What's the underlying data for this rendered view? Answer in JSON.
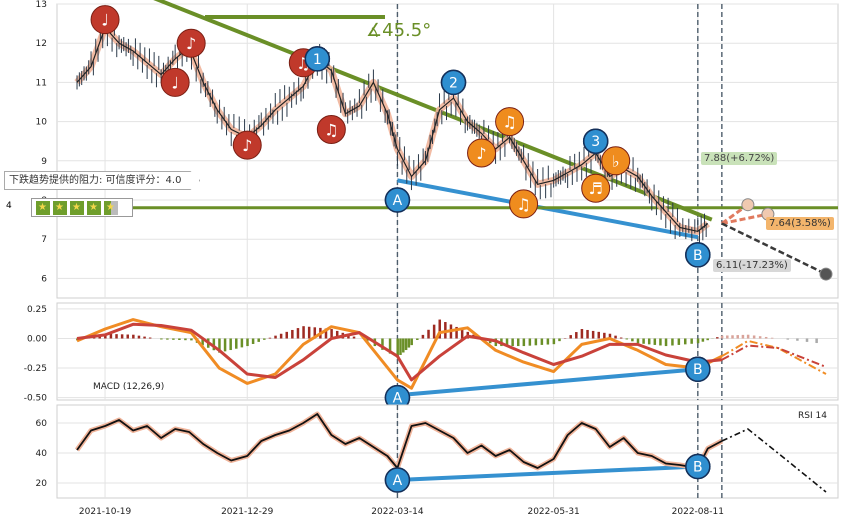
{
  "chart_data": [
    {
      "type": "line",
      "panel": "price",
      "ylim": [
        5.5,
        13
      ],
      "y_ticks": [
        6,
        7,
        8,
        9,
        10,
        11,
        12,
        13
      ],
      "x_ticks": [
        "2021-10-19",
        "2021-12-29",
        "2022-03-14",
        "2022-05-31",
        "2022-08-11"
      ],
      "x_range": [
        "2021-09-25",
        "2022-10-20"
      ],
      "series": [
        {
          "color": "#222222",
          "points": [
            [
              "2021-10-05",
              11.0
            ],
            [
              "2021-10-12",
              11.4
            ],
            [
              "2021-10-19",
              12.4
            ],
            [
              "2021-10-26",
              12.0
            ],
            [
              "2021-11-02",
              11.8
            ],
            [
              "2021-11-09",
              11.5
            ],
            [
              "2021-11-16",
              11.2
            ],
            [
              "2021-11-23",
              11.6
            ],
            [
              "2021-11-30",
              11.9
            ],
            [
              "2021-12-07",
              11.0
            ],
            [
              "2021-12-14",
              10.3
            ],
            [
              "2021-12-21",
              9.8
            ],
            [
              "2021-12-29",
              9.6
            ],
            [
              "2022-01-05",
              9.9
            ],
            [
              "2022-01-12",
              10.3
            ],
            [
              "2022-01-19",
              10.6
            ],
            [
              "2022-01-26",
              10.9
            ],
            [
              "2022-02-02",
              11.6
            ],
            [
              "2022-02-09",
              11.3
            ],
            [
              "2022-02-16",
              10.2
            ],
            [
              "2022-02-23",
              10.4
            ],
            [
              "2022-03-02",
              11.0
            ],
            [
              "2022-03-09",
              10.2
            ],
            [
              "2022-03-14",
              9.3
            ],
            [
              "2022-03-21",
              8.6
            ],
            [
              "2022-03-28",
              9.0
            ],
            [
              "2022-04-04",
              10.3
            ],
            [
              "2022-04-11",
              10.6
            ],
            [
              "2022-04-18",
              10.0
            ],
            [
              "2022-04-25",
              9.7
            ],
            [
              "2022-05-02",
              9.3
            ],
            [
              "2022-05-09",
              9.6
            ],
            [
              "2022-05-16",
              9.0
            ],
            [
              "2022-05-23",
              8.4
            ],
            [
              "2022-05-31",
              8.5
            ],
            [
              "2022-06-07",
              8.7
            ],
            [
              "2022-06-14",
              8.9
            ],
            [
              "2022-06-21",
              9.2
            ],
            [
              "2022-06-28",
              8.6
            ],
            [
              "2022-07-05",
              8.8
            ],
            [
              "2022-07-12",
              8.6
            ],
            [
              "2022-07-19",
              8.1
            ],
            [
              "2022-07-26",
              7.7
            ],
            [
              "2022-08-02",
              7.3
            ],
            [
              "2022-08-11",
              7.2
            ],
            [
              "2022-08-16",
              7.4
            ]
          ]
        },
        {
          "color": "#e07a5f",
          "points": [
            [
              "2022-08-23",
              7.4
            ],
            [
              "2022-09-15",
              7.64
            ]
          ]
        },
        {
          "color": "#e07a5f",
          "points": [
            [
              "2022-08-23",
              7.4
            ],
            [
              "2022-09-05",
              7.88
            ]
          ]
        },
        {
          "color": "#3a3a3a",
          "points": [
            [
              "2022-08-23",
              7.4
            ],
            [
              "2022-10-14",
              6.11
            ]
          ]
        }
      ],
      "trendlines": [
        {
          "name": "resistance",
          "color": "#6a8f27",
          "points": [
            [
              "2021-11-10",
              13.2
            ],
            [
              "2022-08-18",
              7.5
            ]
          ]
        },
        {
          "name": "support",
          "color": "#3591d0",
          "points": [
            [
              "2022-03-14",
              8.5
            ],
            [
              "2022-08-11",
              7.05
            ]
          ]
        },
        {
          "name": "horizontal",
          "color": "#6a8f27",
          "points": [
            [
              "2021-09-25",
              7.8
            ],
            [
              "2022-10-20",
              7.8
            ]
          ]
        }
      ],
      "vlines": [
        "2022-03-14",
        "2022-08-11",
        "2022-08-23"
      ],
      "annotations": [
        {
          "text": "45.5°",
          "color": "#6a8f27"
        },
        {
          "text": "7.88(+6.72%)"
        },
        {
          "text": "7.64(3.58%)"
        },
        {
          "text": "6.11(-17.23%)"
        },
        {
          "text": "下跌趋势提供的阻力: 可信度评分：4.0"
        },
        {
          "text": "4"
        }
      ],
      "markers": [
        {
          "label": "1",
          "x": "2022-02-02",
          "y": 11.6
        },
        {
          "label": "2",
          "x": "2022-04-11",
          "y": 11.0
        },
        {
          "label": "3",
          "x": "2022-06-21",
          "y": 9.5
        },
        {
          "label": "A",
          "x": "2022-03-14",
          "y": 8.0
        },
        {
          "label": "B",
          "x": "2022-08-11",
          "y": 6.6
        }
      ]
    },
    {
      "type": "line",
      "panel": "macd",
      "label": "MACD (12,26,9)",
      "ylim": [
        -0.52,
        0.3
      ],
      "y_ticks": [
        0.25,
        0.0,
        -0.25,
        -0.5
      ],
      "y_tick_labels": [
        "0.25",
        "0.00",
        "-0.25",
        "-0.50"
      ],
      "series": [
        {
          "color": "#f08c24",
          "points": [
            [
              "2021-10-05",
              -0.02
            ],
            [
              "2021-10-19",
              0.08
            ],
            [
              "2021-11-02",
              0.16
            ],
            [
              "2021-11-16",
              0.1
            ],
            [
              "2021-12-01",
              0.05
            ],
            [
              "2021-12-15",
              -0.25
            ],
            [
              "2021-12-29",
              -0.38
            ],
            [
              "2022-01-12",
              -0.3
            ],
            [
              "2022-01-26",
              -0.05
            ],
            [
              "2022-02-09",
              0.1
            ],
            [
              "2022-02-23",
              0.05
            ],
            [
              "2022-03-14",
              -0.35
            ],
            [
              "2022-03-21",
              -0.42
            ],
            [
              "2022-04-04",
              0.05
            ],
            [
              "2022-04-18",
              0.09
            ],
            [
              "2022-05-02",
              -0.1
            ],
            [
              "2022-05-16",
              -0.2
            ],
            [
              "2022-05-31",
              -0.28
            ],
            [
              "2022-06-14",
              -0.05
            ],
            [
              "2022-06-28",
              0.0
            ],
            [
              "2022-07-12",
              -0.1
            ],
            [
              "2022-07-26",
              -0.22
            ],
            [
              "2022-08-11",
              -0.25
            ],
            [
              "2022-08-23",
              -0.15
            ],
            [
              "2022-09-05",
              -0.02
            ],
            [
              "2022-09-20",
              -0.08
            ],
            [
              "2022-10-14",
              -0.3
            ]
          ]
        },
        {
          "color": "#c9423a",
          "points": [
            [
              "2021-10-05",
              0.0
            ],
            [
              "2021-10-19",
              0.03
            ],
            [
              "2021-11-02",
              0.12
            ],
            [
              "2021-11-16",
              0.11
            ],
            [
              "2021-12-01",
              0.07
            ],
            [
              "2021-12-15",
              -0.1
            ],
            [
              "2021-12-29",
              -0.3
            ],
            [
              "2022-01-12",
              -0.33
            ],
            [
              "2022-01-26",
              -0.18
            ],
            [
              "2022-02-09",
              0.0
            ],
            [
              "2022-02-23",
              0.05
            ],
            [
              "2022-03-14",
              -0.15
            ],
            [
              "2022-03-21",
              -0.35
            ],
            [
              "2022-04-04",
              -0.15
            ],
            [
              "2022-04-18",
              0.02
            ],
            [
              "2022-05-02",
              -0.02
            ],
            [
              "2022-05-16",
              -0.12
            ],
            [
              "2022-05-31",
              -0.22
            ],
            [
              "2022-06-14",
              -0.15
            ],
            [
              "2022-06-28",
              -0.05
            ],
            [
              "2022-07-12",
              -0.05
            ],
            [
              "2022-07-26",
              -0.14
            ],
            [
              "2022-08-11",
              -0.2
            ],
            [
              "2022-08-23",
              -0.18
            ],
            [
              "2022-09-05",
              -0.06
            ],
            [
              "2022-09-20",
              -0.08
            ],
            [
              "2022-10-14",
              -0.24
            ]
          ]
        }
      ],
      "trendlines": [
        {
          "color": "#3591d0",
          "points": [
            [
              "2022-03-14",
              -0.48
            ],
            [
              "2022-08-11",
              -0.26
            ]
          ]
        }
      ],
      "markers": [
        {
          "label": "A",
          "x": "2022-03-14",
          "y": -0.5
        },
        {
          "label": "B",
          "x": "2022-08-11",
          "y": -0.26
        }
      ]
    },
    {
      "type": "line",
      "panel": "rsi",
      "label": "RSI 14",
      "ylim": [
        10,
        72
      ],
      "y_ticks": [
        60,
        40,
        20
      ],
      "series": [
        {
          "color": "#111111",
          "points": [
            [
              "2021-10-05",
              42
            ],
            [
              "2021-10-12",
              55
            ],
            [
              "2021-10-19",
              58
            ],
            [
              "2021-10-26",
              62
            ],
            [
              "2021-11-02",
              55
            ],
            [
              "2021-11-09",
              58
            ],
            [
              "2021-11-16",
              50
            ],
            [
              "2021-11-23",
              56
            ],
            [
              "2021-11-30",
              54
            ],
            [
              "2021-12-07",
              46
            ],
            [
              "2021-12-14",
              40
            ],
            [
              "2021-12-21",
              35
            ],
            [
              "2021-12-29",
              38
            ],
            [
              "2022-01-05",
              48
            ],
            [
              "2022-01-12",
              52
            ],
            [
              "2022-01-19",
              55
            ],
            [
              "2022-01-26",
              60
            ],
            [
              "2022-02-02",
              66
            ],
            [
              "2022-02-09",
              52
            ],
            [
              "2022-02-16",
              46
            ],
            [
              "2022-02-23",
              50
            ],
            [
              "2022-03-02",
              44
            ],
            [
              "2022-03-09",
              38
            ],
            [
              "2022-03-14",
              30
            ],
            [
              "2022-03-21",
              58
            ],
            [
              "2022-03-28",
              60
            ],
            [
              "2022-04-04",
              55
            ],
            [
              "2022-04-11",
              50
            ],
            [
              "2022-04-18",
              40
            ],
            [
              "2022-04-25",
              45
            ],
            [
              "2022-05-02",
              38
            ],
            [
              "2022-05-09",
              42
            ],
            [
              "2022-05-16",
              34
            ],
            [
              "2022-05-23",
              30
            ],
            [
              "2022-05-31",
              36
            ],
            [
              "2022-06-07",
              52
            ],
            [
              "2022-06-14",
              60
            ],
            [
              "2022-06-21",
              56
            ],
            [
              "2022-06-28",
              44
            ],
            [
              "2022-07-05",
              50
            ],
            [
              "2022-07-12",
              40
            ],
            [
              "2022-07-19",
              38
            ],
            [
              "2022-07-26",
              33
            ],
            [
              "2022-08-02",
              32
            ],
            [
              "2022-08-11",
              30
            ],
            [
              "2022-08-16",
              43
            ],
            [
              "2022-08-23",
              48
            ]
          ]
        },
        {
          "color": "#111111",
          "points": [
            [
              "2022-08-23",
              48
            ],
            [
              "2022-09-05",
              56
            ],
            [
              "2022-09-20",
              40
            ],
            [
              "2022-10-14",
              14
            ]
          ]
        }
      ],
      "trendlines": [
        {
          "color": "#3591d0",
          "points": [
            [
              "2022-03-14",
              22
            ],
            [
              "2022-08-11",
              31
            ]
          ]
        }
      ],
      "markers": [
        {
          "label": "A",
          "x": "2022-03-14",
          "y": 22
        },
        {
          "label": "B",
          "x": "2022-08-11",
          "y": 31
        }
      ]
    }
  ],
  "pattern_markers": [
    {
      "symbol": "♩",
      "x": "2021-10-19",
      "y": 12.6,
      "color": "#c0392b"
    },
    {
      "symbol": "♩",
      "x": "2021-11-23",
      "y": 11.0,
      "color": "#c0392b"
    },
    {
      "symbol": "♪",
      "x": "2021-12-01",
      "y": 12.0,
      "color": "#c0392b"
    },
    {
      "symbol": "♪",
      "x": "2021-12-29",
      "y": 9.4,
      "color": "#c0392b"
    },
    {
      "symbol": "♫",
      "x": "2022-01-26",
      "y": 11.5,
      "color": "#c0392b"
    },
    {
      "symbol": "♫",
      "x": "2022-02-09",
      "y": 9.8,
      "color": "#c0392b"
    },
    {
      "symbol": "♫",
      "x": "2022-05-09",
      "y": 10.0,
      "color": "#ef8c1e"
    },
    {
      "symbol": "♪",
      "x": "2022-04-25",
      "y": 9.2,
      "color": "#ef8c1e"
    },
    {
      "symbol": "♫",
      "x": "2022-05-16",
      "y": 7.9,
      "color": "#ef8c1e"
    },
    {
      "symbol": "♭",
      "x": "2022-07-01",
      "y": 9.0,
      "color": "#ef8c1e"
    },
    {
      "symbol": "♬",
      "x": "2022-06-21",
      "y": 8.3,
      "color": "#ef8c1e"
    }
  ]
}
